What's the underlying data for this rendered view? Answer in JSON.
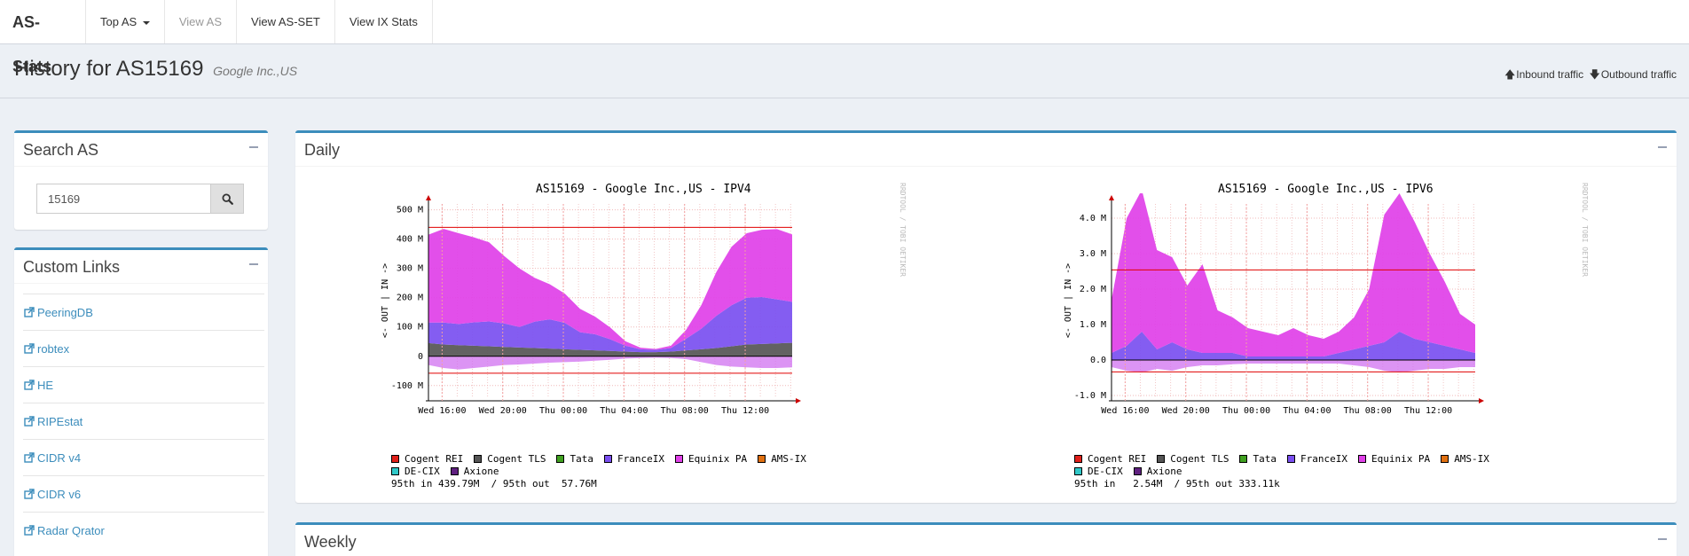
{
  "nav": {
    "brand": "AS-Stats",
    "items": [
      {
        "label": "Top AS",
        "dropdown": true,
        "disabled": false
      },
      {
        "label": "View AS",
        "dropdown": false,
        "disabled": true
      },
      {
        "label": "View AS-SET",
        "dropdown": false,
        "disabled": false
      },
      {
        "label": "View IX Stats",
        "dropdown": false,
        "disabled": false
      }
    ]
  },
  "header": {
    "title": "History for AS15169",
    "subtitle": "Google Inc.,US",
    "inbound_label": "Inbound traffic",
    "outbound_label": "Outbound traffic"
  },
  "search": {
    "title": "Search AS",
    "value": "15169"
  },
  "custom_links": {
    "title": "Custom Links",
    "items": [
      "PeeringDB",
      "robtex",
      "HE",
      "RIPEstat",
      "CIDR v4",
      "CIDR v6",
      "Radar Qrator"
    ]
  },
  "daily": {
    "title": "Daily"
  },
  "weekly": {
    "title": "Weekly"
  },
  "colors": {
    "accent": "#3c8dbc",
    "Cogent REI": "#e0201a",
    "Cogent TLS": "#555555",
    "Tata": "#40a020",
    "FranceIX": "#7a4ff0",
    "Equinix PA": "#e040e8",
    "AMS-IX": "#e07010",
    "DE-CIX": "#30c8c8",
    "Axione": "#602080"
  },
  "watermark": "RRDTOOL / TOBI OETIKER",
  "legend_series": [
    "Cogent REI",
    "Cogent TLS",
    "Tata",
    "FranceIX",
    "Equinix PA",
    "AMS-IX",
    "DE-CIX",
    "Axione"
  ],
  "chart_data": [
    {
      "type": "area",
      "title": "AS15169 - Google Inc.,US - IPV4",
      "ylabel": "<- OUT | IN ->",
      "y_ticks": [
        "500 M",
        "400 M",
        "300 M",
        "200 M",
        "100 M",
        "0",
        "-100 M"
      ],
      "y_tick_values": [
        500,
        400,
        300,
        200,
        100,
        0,
        -100
      ],
      "ylim": [
        -140,
        520
      ],
      "x_ticks": [
        "Wed 16:00",
        "Wed 20:00",
        "Thu 00:00",
        "Thu 04:00",
        "Thu 08:00",
        "Thu 12:00"
      ],
      "x_hours": [
        0,
        4,
        8,
        12,
        16,
        20
      ],
      "x_range_hours": [
        -0.9,
        23.1
      ],
      "p95_in": 440,
      "p95_out": -58,
      "stats": "95th in 439.79M  / 95th out  57.76M",
      "series_in": [
        {
          "name": "Cogent TLS",
          "values": [
            45,
            40,
            38,
            36,
            34,
            32,
            30,
            28,
            26,
            24,
            22,
            20,
            18,
            16,
            14,
            14,
            16,
            20,
            24,
            28,
            34,
            40,
            42,
            44,
            46
          ]
        },
        {
          "name": "FranceIX",
          "values": [
            70,
            75,
            72,
            80,
            85,
            80,
            70,
            90,
            100,
            90,
            60,
            55,
            40,
            20,
            10,
            8,
            12,
            40,
            70,
            110,
            140,
            160,
            160,
            150,
            140
          ]
        },
        {
          "name": "Equinix PA",
          "values": [
            300,
            320,
            310,
            290,
            270,
            230,
            200,
            150,
            120,
            100,
            80,
            60,
            40,
            15,
            5,
            3,
            8,
            30,
            80,
            150,
            200,
            220,
            230,
            240,
            230
          ]
        }
      ],
      "series_out": [
        {
          "name": "Equinix PA",
          "values": [
            -30,
            -40,
            -45,
            -40,
            -35,
            -30,
            -28,
            -25,
            -22,
            -20,
            -18,
            -15,
            -12,
            -8,
            -6,
            -5,
            -6,
            -10,
            -20,
            -30,
            -35,
            -38,
            -40,
            -40,
            -38
          ]
        }
      ]
    },
    {
      "type": "area",
      "title": "AS15169 - Google Inc.,US - IPV6",
      "ylabel": "<- OUT | IN ->",
      "y_ticks": [
        "4.0 M",
        "3.0 M",
        "2.0 M",
        "1.0 M",
        "0.0",
        "-1.0 M"
      ],
      "y_tick_values": [
        4,
        3,
        2,
        1,
        0,
        -1
      ],
      "ylim": [
        -1.05,
        4.4
      ],
      "x_ticks": [
        "Wed 16:00",
        "Wed 20:00",
        "Thu 00:00",
        "Thu 04:00",
        "Thu 08:00",
        "Thu 12:00"
      ],
      "x_hours": [
        0,
        4,
        8,
        12,
        16,
        20
      ],
      "x_range_hours": [
        -0.9,
        23.1
      ],
      "p95_in": 2.54,
      "p95_out": -0.333,
      "stats": "95th in   2.54M  / 95th out 333.11k",
      "series_in": [
        {
          "name": "FranceIX",
          "values": [
            0.2,
            0.4,
            0.8,
            0.3,
            0.5,
            0.3,
            0.2,
            0.2,
            0.2,
            0.1,
            0.1,
            0.1,
            0.1,
            0.1,
            0.1,
            0.2,
            0.3,
            0.4,
            0.5,
            0.8,
            0.6,
            0.5,
            0.4,
            0.3,
            0.2
          ]
        },
        {
          "name": "Equinix PA",
          "values": [
            1.5,
            3.6,
            4.0,
            2.8,
            2.4,
            1.8,
            2.5,
            1.2,
            1.0,
            0.8,
            0.7,
            0.6,
            0.8,
            0.6,
            0.5,
            0.6,
            0.9,
            1.6,
            3.6,
            3.9,
            3.3,
            2.5,
            1.8,
            1.0,
            0.8
          ]
        }
      ],
      "series_out": [
        {
          "name": "Equinix PA",
          "values": [
            -0.2,
            -0.3,
            -0.35,
            -0.25,
            -0.3,
            -0.2,
            -0.15,
            -0.15,
            -0.12,
            -0.1,
            -0.1,
            -0.1,
            -0.1,
            -0.1,
            -0.1,
            -0.1,
            -0.15,
            -0.2,
            -0.3,
            -0.35,
            -0.3,
            -0.25,
            -0.25,
            -0.2,
            -0.2
          ]
        }
      ]
    }
  ]
}
